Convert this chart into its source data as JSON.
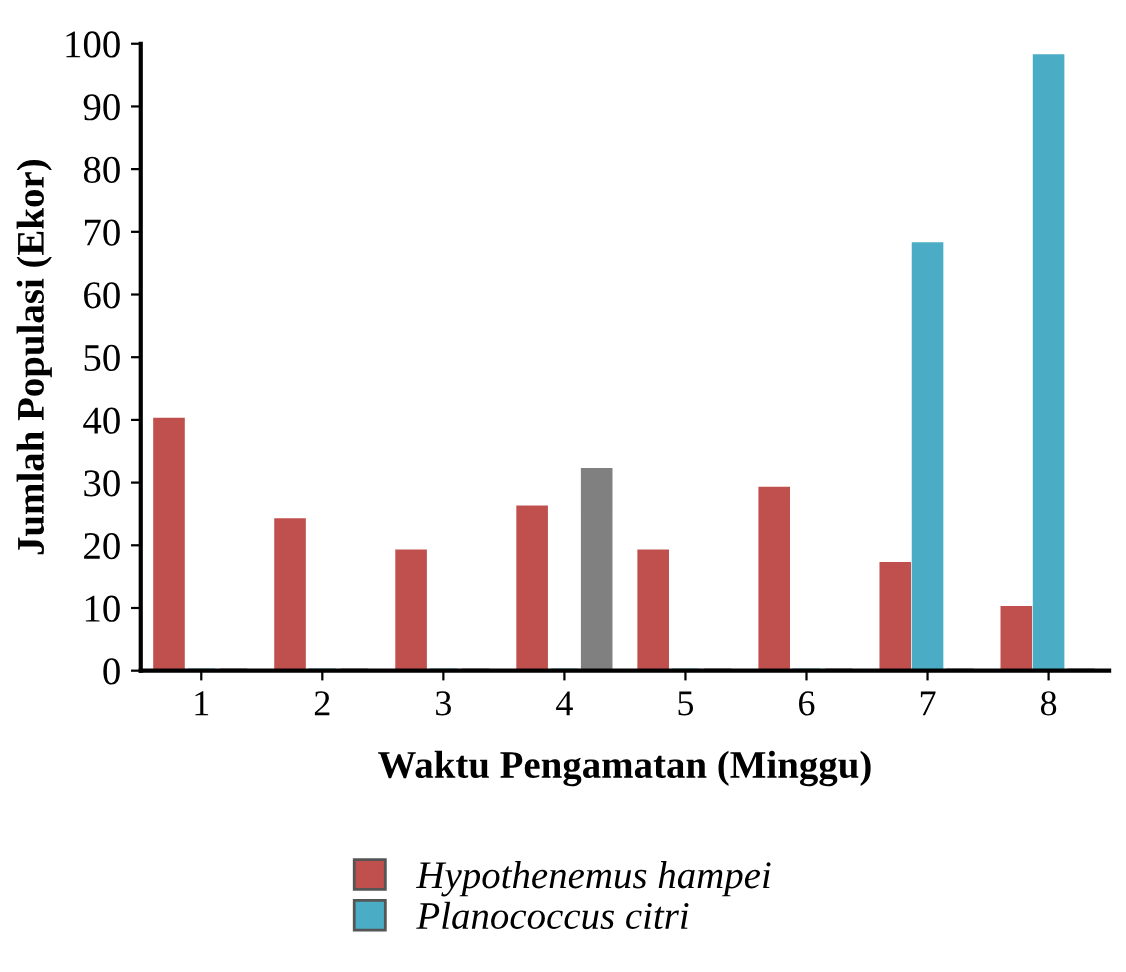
{
  "chart_data": {
    "type": "bar",
    "xlabel": "Waktu Pengamatan (Minggu)",
    "ylabel": "Jumlah Populasi (Ekor)",
    "categories": [
      "1",
      "2",
      "3",
      "4",
      "5",
      "6",
      "7",
      "8"
    ],
    "series": [
      {
        "name": "Hypothenemus hampei",
        "color": "#c0504d",
        "values": [
          40,
          24,
          19,
          26,
          19,
          29,
          17,
          10
        ]
      },
      {
        "name": "Planococcus citri",
        "color": "#4bacc6",
        "values": [
          0,
          0,
          0,
          0,
          0,
          0,
          68,
          98
        ]
      },
      {
        "color": "#808080",
        "values": [
          0,
          0,
          0,
          32,
          0,
          0,
          0,
          0
        ]
      }
    ],
    "ylim": [
      0,
      100
    ],
    "yticks": [
      0,
      10,
      20,
      30,
      40,
      50,
      60,
      70,
      80,
      90,
      100
    ],
    "grid": false,
    "legend": "bottom"
  }
}
